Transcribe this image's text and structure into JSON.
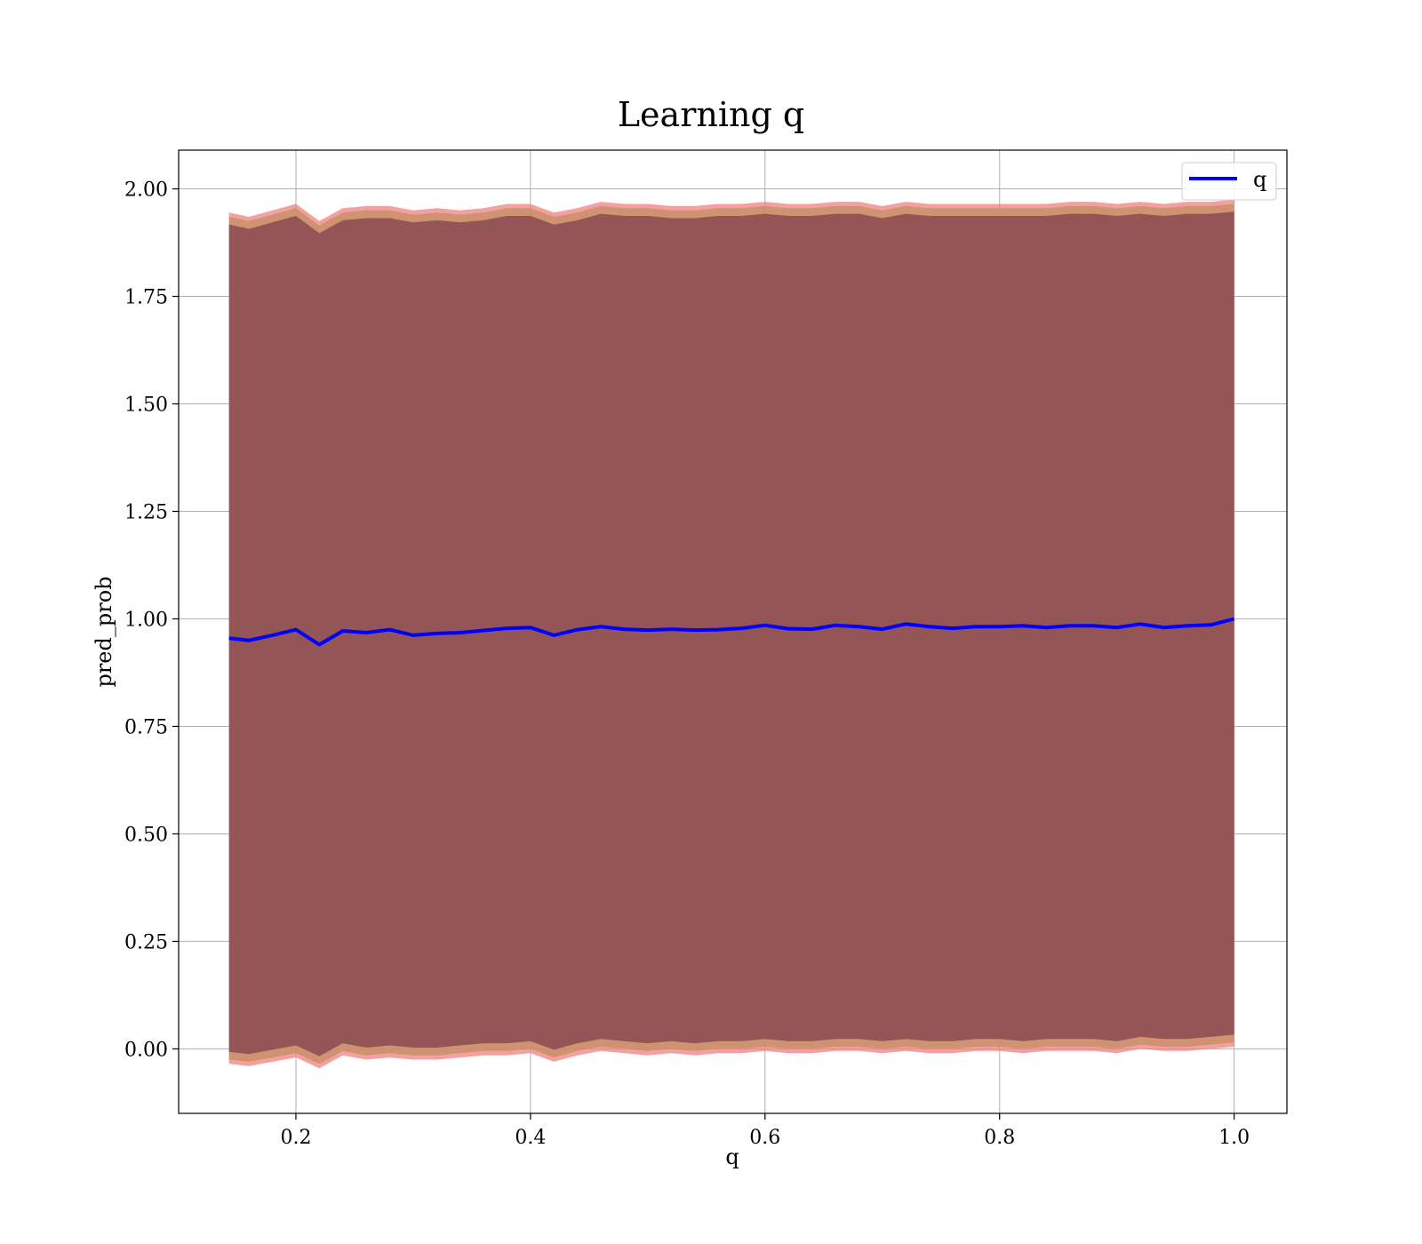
{
  "chart_data": {
    "type": "line",
    "title": "Learning q",
    "xlabel": "q",
    "ylabel": "pred_prob",
    "xlim": [
      0.1,
      1.045
    ],
    "ylim": [
      -0.15,
      2.09
    ],
    "xticks": [
      0.2,
      0.4,
      0.6,
      0.8,
      1.0
    ],
    "xtick_labels": [
      "0.2",
      "0.4",
      "0.6",
      "0.8",
      "1.0"
    ],
    "yticks": [
      0.0,
      0.25,
      0.5,
      0.75,
      1.0,
      1.25,
      1.5,
      1.75,
      2.0
    ],
    "ytick_labels": [
      "0.00",
      "0.25",
      "0.50",
      "0.75",
      "1.00",
      "1.25",
      "1.50",
      "1.75",
      "2.00"
    ],
    "grid": true,
    "legend": {
      "position": "top-right",
      "entries": [
        "q"
      ]
    },
    "colors": {
      "line": "#0000ff",
      "band_inner": "#7b3a4a",
      "band_middle": "#c8906a",
      "band_outer": "#f08080"
    },
    "series": [
      {
        "name": "q",
        "x": [
          0.143,
          0.16,
          0.18,
          0.2,
          0.22,
          0.24,
          0.26,
          0.28,
          0.3,
          0.32,
          0.34,
          0.36,
          0.38,
          0.4,
          0.42,
          0.44,
          0.46,
          0.48,
          0.5,
          0.52,
          0.54,
          0.56,
          0.58,
          0.6,
          0.62,
          0.64,
          0.66,
          0.68,
          0.7,
          0.72,
          0.74,
          0.76,
          0.78,
          0.8,
          0.82,
          0.84,
          0.86,
          0.88,
          0.9,
          0.92,
          0.94,
          0.96,
          0.98,
          1.0
        ],
        "y": [
          0.955,
          0.95,
          0.962,
          0.975,
          0.94,
          0.972,
          0.968,
          0.975,
          0.962,
          0.966,
          0.968,
          0.973,
          0.978,
          0.98,
          0.962,
          0.975,
          0.982,
          0.976,
          0.974,
          0.976,
          0.974,
          0.975,
          0.978,
          0.985,
          0.977,
          0.976,
          0.985,
          0.982,
          0.976,
          0.988,
          0.982,
          0.978,
          0.982,
          0.982,
          0.984,
          0.98,
          0.984,
          0.984,
          0.98,
          0.988,
          0.98,
          0.984,
          0.986,
          1.0
        ],
        "band_upper": [
          1.935,
          1.925,
          1.94,
          1.955,
          1.915,
          1.945,
          1.95,
          1.95,
          1.94,
          1.945,
          1.94,
          1.945,
          1.955,
          1.955,
          1.935,
          1.945,
          1.96,
          1.955,
          1.955,
          1.95,
          1.95,
          1.955,
          1.955,
          1.96,
          1.955,
          1.955,
          1.96,
          1.96,
          1.95,
          1.96,
          1.955,
          1.955,
          1.955,
          1.955,
          1.955,
          1.955,
          1.96,
          1.96,
          1.955,
          1.96,
          1.955,
          1.96,
          1.96,
          1.965
        ],
        "band_lower": [
          -0.025,
          -0.03,
          -0.02,
          -0.01,
          -0.035,
          -0.005,
          -0.015,
          -0.01,
          -0.015,
          -0.015,
          -0.01,
          -0.005,
          -0.005,
          0.0,
          -0.02,
          -0.005,
          0.005,
          0.0,
          -0.005,
          0.0,
          -0.005,
          0.0,
          0.0,
          0.005,
          0.0,
          0.0,
          0.005,
          0.005,
          0.0,
          0.005,
          0.0,
          0.0,
          0.005,
          0.005,
          0.0,
          0.005,
          0.005,
          0.005,
          0.0,
          0.01,
          0.005,
          0.005,
          0.01,
          0.015
        ]
      }
    ]
  }
}
